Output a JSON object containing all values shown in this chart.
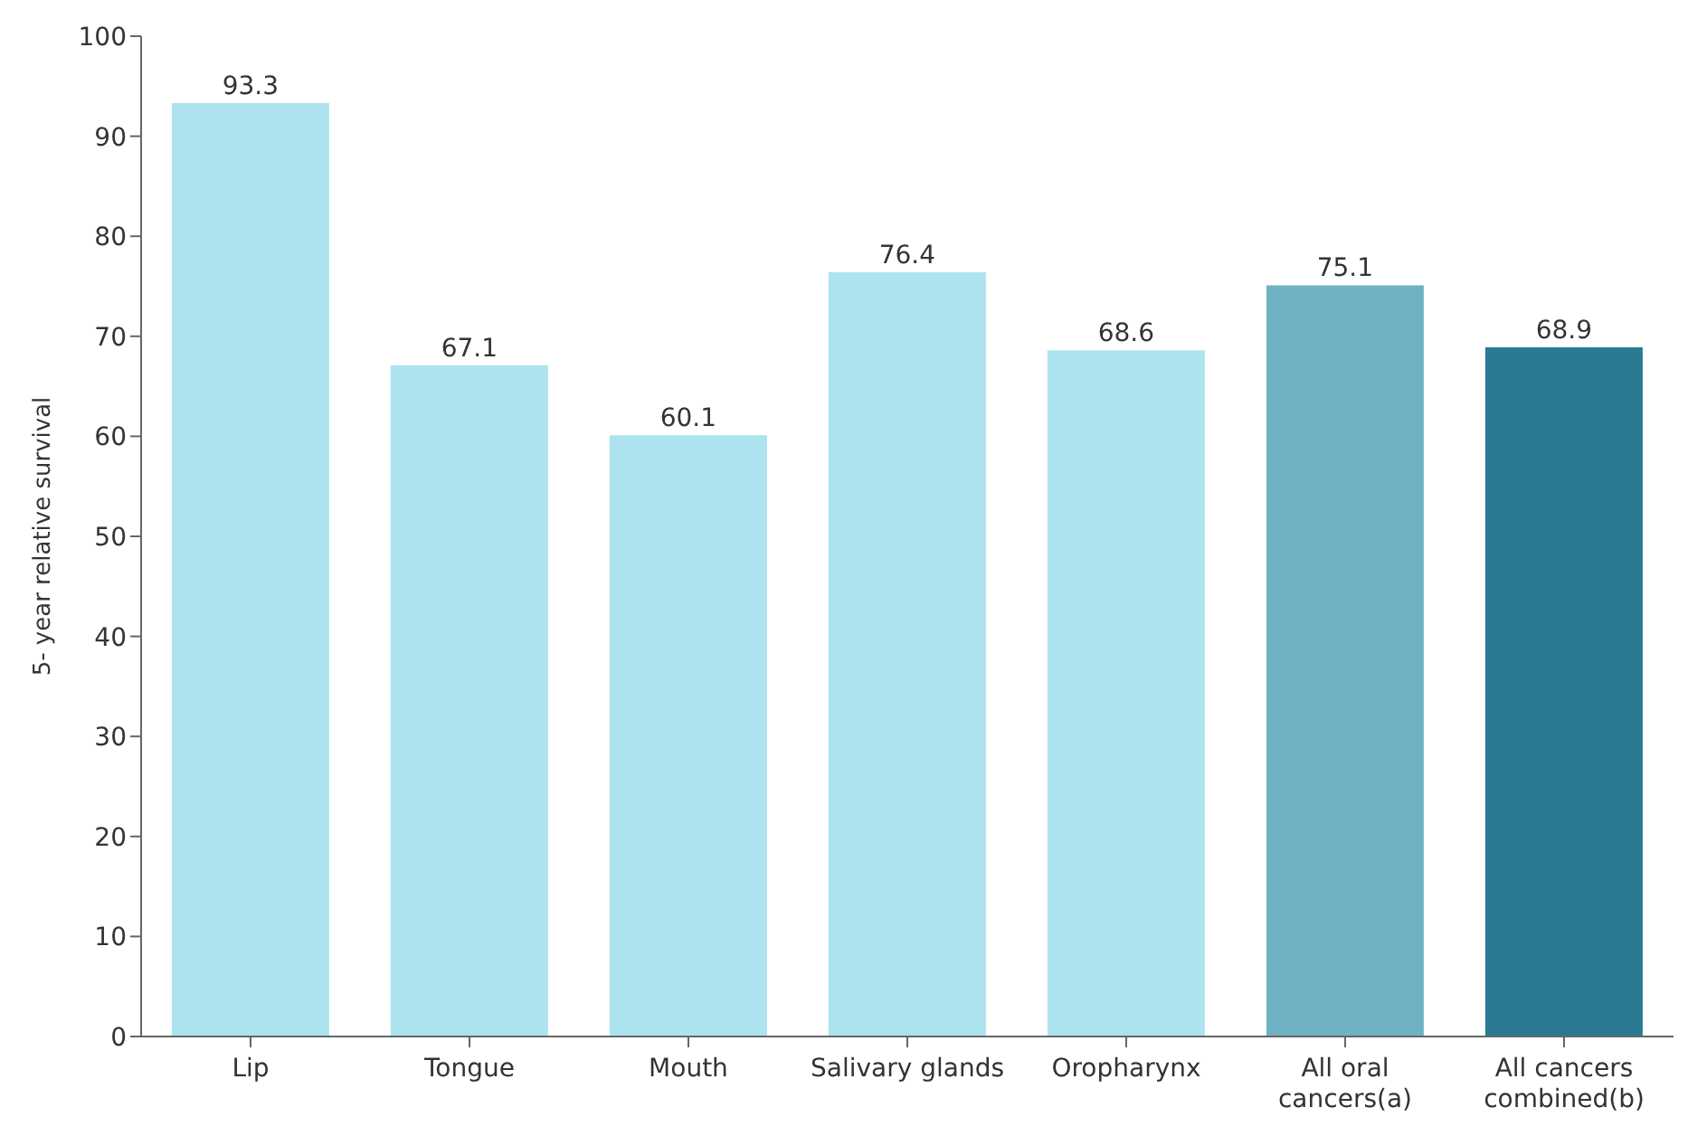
{
  "chart_data": {
    "type": "bar",
    "ylabel": "5- year relative survival",
    "categories": [
      "Lip",
      "Tongue",
      "Mouth",
      "Salivary glands",
      "Oropharynx",
      "All oral cancers(a)",
      "All cancers combined(b)"
    ],
    "values": [
      93.3,
      67.1,
      60.1,
      76.4,
      68.6,
      75.1,
      68.9
    ],
    "colors": [
      "#ade3ee",
      "#ade3ee",
      "#ade3ee",
      "#ade3ee",
      "#ade3ee",
      "#6fb2c3",
      "#2a7b92"
    ],
    "ylim": [
      0,
      100
    ],
    "yticks": [
      0,
      10,
      20,
      30,
      40,
      50,
      60,
      70,
      80,
      90,
      100
    ],
    "grid": false,
    "data_labels": true
  }
}
